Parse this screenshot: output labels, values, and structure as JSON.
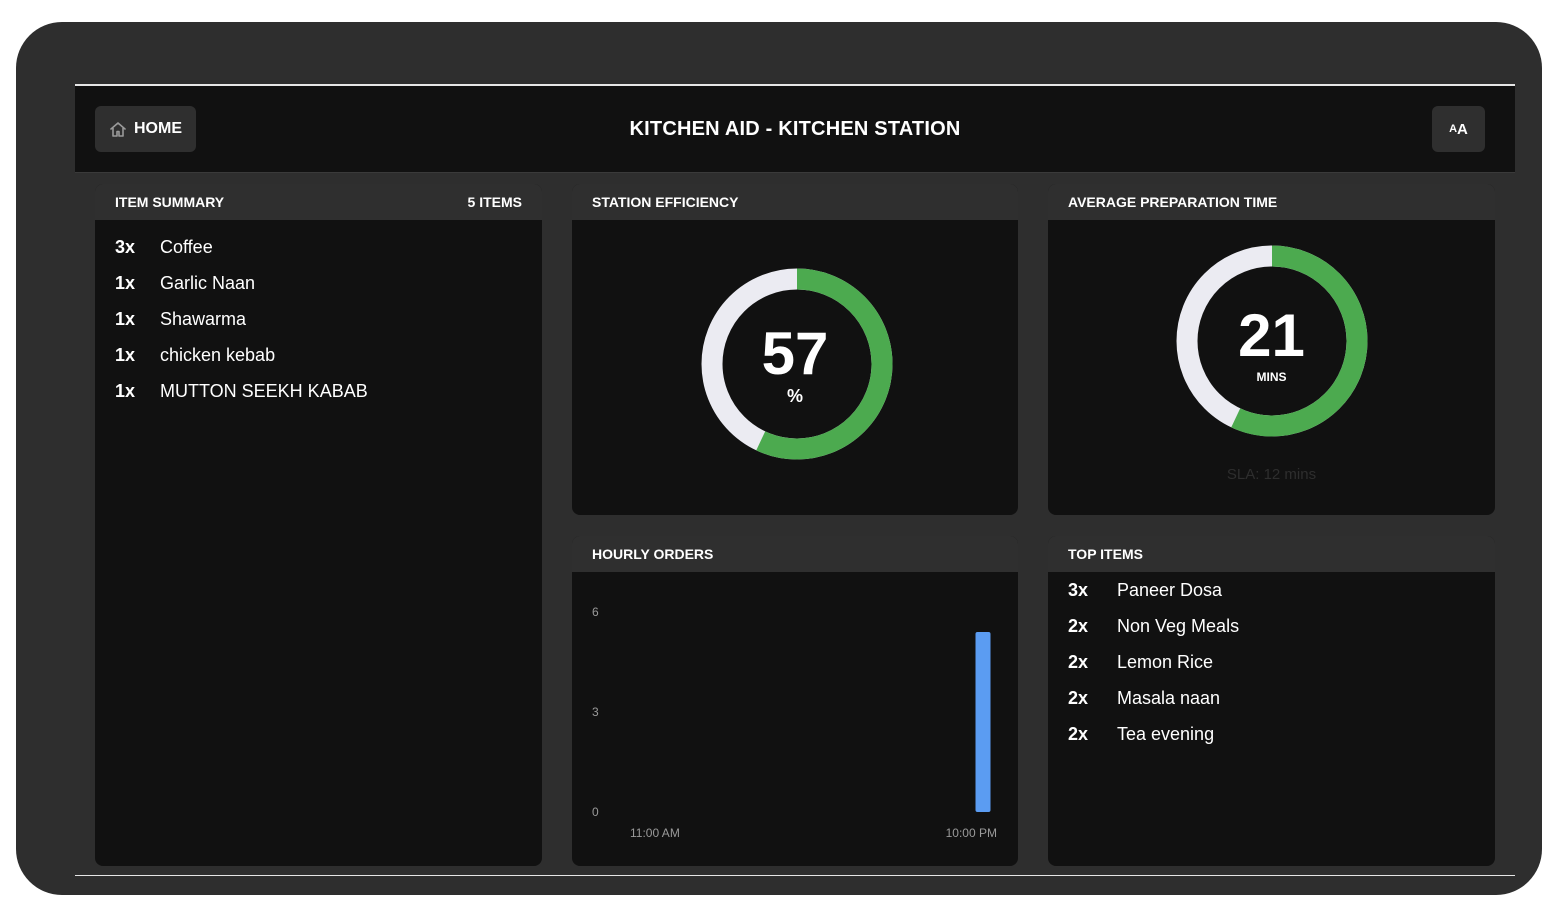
{
  "header": {
    "home_label": "HOME",
    "title": "KITCHEN AID - KITCHEN STATION",
    "font_toggle_big": "A",
    "font_toggle_small": "A"
  },
  "item_summary": {
    "title": "ITEM SUMMARY",
    "count_label": "5 ITEMS",
    "items": [
      {
        "qty": "3x",
        "name": "Coffee"
      },
      {
        "qty": "1x",
        "name": "Garlic Naan"
      },
      {
        "qty": "1x",
        "name": "Shawarma"
      },
      {
        "qty": "1x",
        "name": "chicken kebab"
      },
      {
        "qty": "1x",
        "name": "MUTTON SEEKH KABAB"
      }
    ]
  },
  "station_efficiency": {
    "title": "STATION EFFICIENCY",
    "value": "57",
    "unit": "%",
    "fill_fraction": 0.57
  },
  "avg_prep_time": {
    "title": "AVERAGE PREPARATION TIME",
    "value": "21",
    "unit": "MINS",
    "sla_text": "SLA: 12 mins",
    "fill_fraction": 0.57
  },
  "hourly_orders": {
    "title": "HOURLY ORDERS"
  },
  "chart_data": {
    "type": "bar",
    "title": "HOURLY ORDERS",
    "x_tick_labels": [
      "11:00 AM",
      "10:00 PM"
    ],
    "y_ticks": [
      0,
      3,
      6
    ],
    "ylim": [
      0,
      6
    ],
    "categories": [
      "10:00 PM"
    ],
    "values": [
      5.4
    ],
    "bar_color": "#5b9cf2",
    "grid": false
  },
  "top_items": {
    "title": "TOP ITEMS",
    "items": [
      {
        "qty": "3x",
        "name": "Paneer Dosa"
      },
      {
        "qty": "2x",
        "name": "Non Veg Meals"
      },
      {
        "qty": "2x",
        "name": "Lemon Rice"
      },
      {
        "qty": "2x",
        "name": "Masala naan"
      },
      {
        "qty": "2x",
        "name": "Tea evening"
      }
    ]
  },
  "colors": {
    "gauge_fill": "#4caa4f",
    "gauge_track": "#ebebf2",
    "background": "#111111",
    "card_header": "#2f2f2f"
  }
}
